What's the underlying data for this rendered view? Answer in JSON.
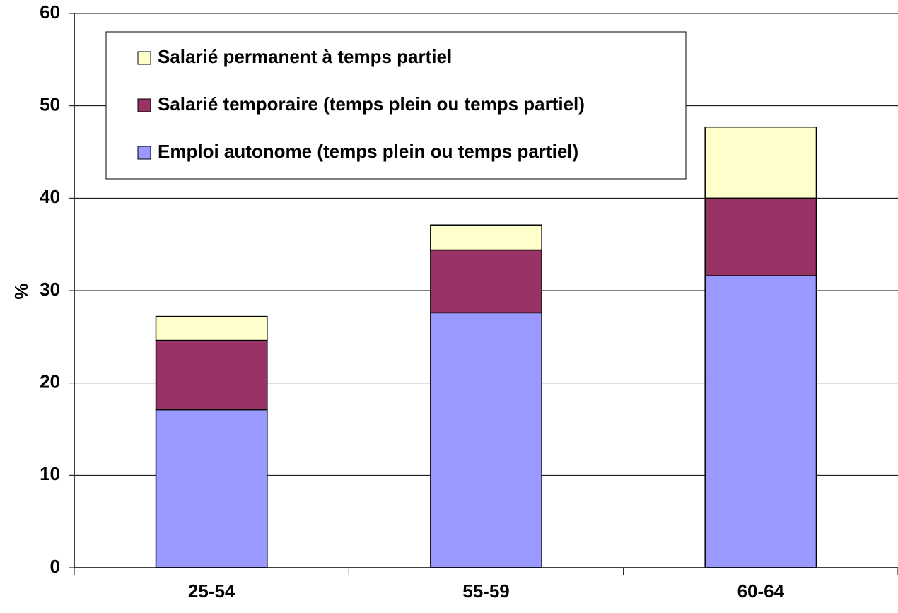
{
  "chart_data": {
    "type": "bar",
    "stacked": true,
    "y_label": "%",
    "categories": [
      "25-54",
      "55-59",
      "60-64"
    ],
    "series": [
      {
        "name": "Emploi autonome (temps plein ou temps partiel)",
        "color": "#9999ff",
        "values": [
          17.1,
          27.6,
          31.6
        ]
      },
      {
        "name": "Salarié temporaire (temps plein ou temps partiel)",
        "color": "#993366",
        "values": [
          7.5,
          6.8,
          8.4
        ]
      },
      {
        "name": "Salarié permanent à temps partiel",
        "color": "#ffffcc",
        "values": [
          2.6,
          2.7,
          7.7
        ]
      }
    ],
    "ylim": [
      0,
      60
    ],
    "yticks": [
      0,
      10,
      20,
      30,
      40,
      50,
      60
    ],
    "grid": true,
    "legend": "upper left"
  }
}
